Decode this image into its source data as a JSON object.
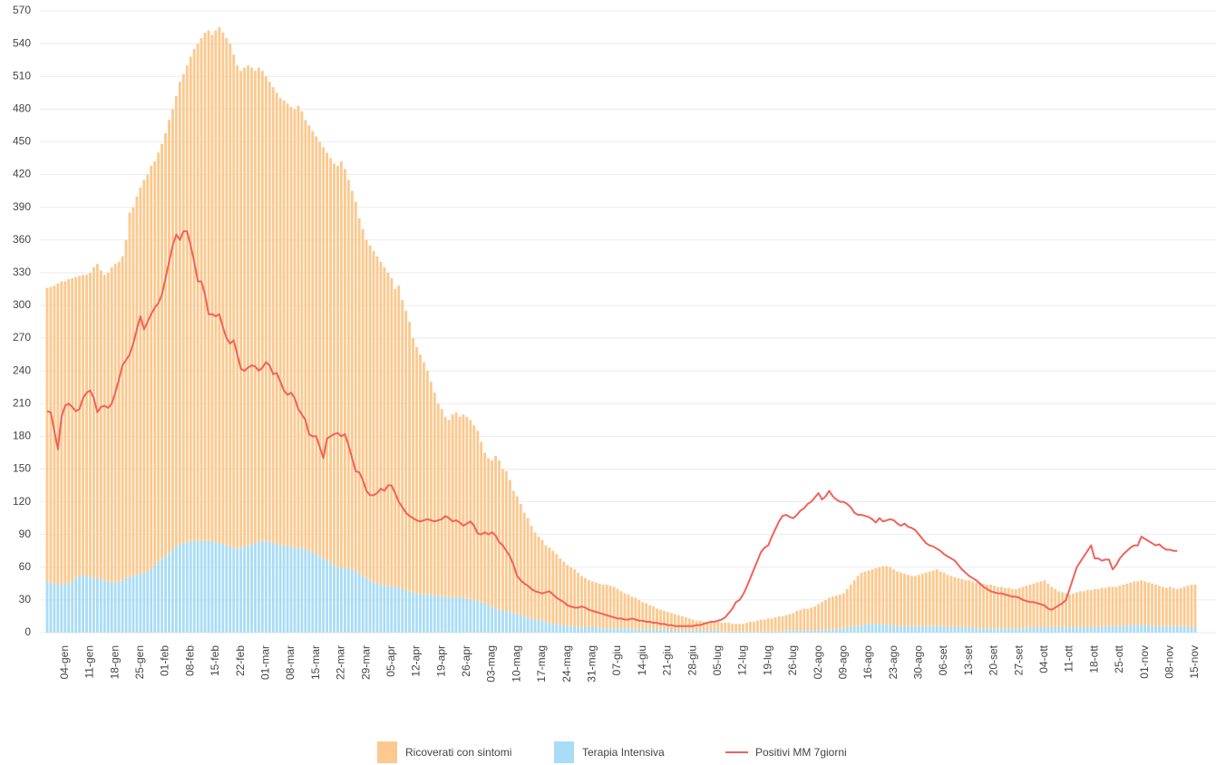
{
  "chart_data": {
    "type": "bar",
    "stacked": true,
    "grid": true,
    "ylim": [
      0,
      570
    ],
    "yticks": [
      0,
      30,
      60,
      90,
      120,
      150,
      180,
      210,
      240,
      270,
      300,
      330,
      360,
      390,
      420,
      450,
      480,
      510,
      540,
      570
    ],
    "categories": [
      null,
      null,
      null,
      null,
      null,
      "04-gen",
      null,
      null,
      null,
      null,
      null,
      null,
      "11-gen",
      null,
      null,
      null,
      null,
      null,
      null,
      "18-gen",
      null,
      null,
      null,
      null,
      null,
      null,
      "25-gen",
      null,
      null,
      null,
      null,
      null,
      null,
      "01-feb",
      null,
      null,
      null,
      null,
      null,
      null,
      "08-feb",
      null,
      null,
      null,
      null,
      null,
      null,
      "15-feb",
      null,
      null,
      null,
      null,
      null,
      null,
      "22-feb",
      null,
      null,
      null,
      null,
      null,
      null,
      "01-mar",
      null,
      null,
      null,
      null,
      null,
      null,
      "08-mar",
      null,
      null,
      null,
      null,
      null,
      null,
      "15-mar",
      null,
      null,
      null,
      null,
      null,
      null,
      "22-mar",
      null,
      null,
      null,
      null,
      null,
      null,
      "29-mar",
      null,
      null,
      null,
      null,
      null,
      null,
      "05-apr",
      null,
      null,
      null,
      null,
      null,
      null,
      "12-apr",
      null,
      null,
      null,
      null,
      null,
      null,
      "19-apr",
      null,
      null,
      null,
      null,
      null,
      null,
      "26-apr",
      null,
      null,
      null,
      null,
      null,
      null,
      "03-mag",
      null,
      null,
      null,
      null,
      null,
      null,
      "10-mag",
      null,
      null,
      null,
      null,
      null,
      null,
      "17-mag",
      null,
      null,
      null,
      null,
      null,
      null,
      "24-mag",
      null,
      null,
      null,
      null,
      null,
      null,
      "31-mag",
      null,
      null,
      null,
      null,
      null,
      null,
      "07-giu",
      null,
      null,
      null,
      null,
      null,
      null,
      "14-giu",
      null,
      null,
      null,
      null,
      null,
      null,
      "21-giu",
      null,
      null,
      null,
      null,
      null,
      null,
      "28-giu",
      null,
      null,
      null,
      null,
      null,
      null,
      "05-lug",
      null,
      null,
      null,
      null,
      null,
      null,
      "12-lug",
      null,
      null,
      null,
      null,
      null,
      null,
      "19-lug",
      null,
      null,
      null,
      null,
      null,
      null,
      "26-lug",
      null,
      null,
      null,
      null,
      null,
      null,
      "02-ago",
      null,
      null,
      null,
      null,
      null,
      null,
      "09-ago",
      null,
      null,
      null,
      null,
      null,
      null,
      "16-ago",
      null,
      null,
      null,
      null,
      null,
      null,
      "23-ago",
      null,
      null,
      null,
      null,
      null,
      null,
      "30-ago",
      null,
      null,
      null,
      null,
      null,
      null,
      "06-set",
      null,
      null,
      null,
      null,
      null,
      null,
      "13-set",
      null,
      null,
      null,
      null,
      null,
      null,
      "20-set",
      null,
      null,
      null,
      null,
      null,
      null,
      "27-set",
      null,
      null,
      null,
      null,
      null,
      null,
      "04-ott",
      null,
      null,
      null,
      null,
      null,
      null,
      "11-ott",
      null,
      null,
      null,
      null,
      null,
      null,
      "18-ott",
      null,
      null,
      null,
      null,
      null,
      null,
      "25-ott",
      null,
      null,
      null,
      null,
      null,
      null,
      "01-nov",
      null,
      null,
      null,
      null,
      null,
      null,
      "08-nov",
      null,
      null,
      null,
      null,
      null,
      null,
      "15-nov"
    ],
    "series": [
      {
        "name": "Ricoverati con sintomi",
        "color": "#fcc98f",
        "values": [
          269,
          271,
          273,
          276,
          277,
          278,
          279,
          278,
          276,
          275,
          275,
          276,
          279,
          285,
          288,
          283,
          280,
          283,
          289,
          292,
          293,
          297,
          310,
          334,
          338,
          347,
          354,
          360,
          364,
          370,
          370,
          375,
          380,
          388,
          397,
          404,
          413,
          424,
          430,
          437,
          444,
          451,
          456,
          461,
          466,
          468,
          464,
          469,
          473,
          469,
          465,
          461,
          452,
          443,
          437,
          439,
          440,
          437,
          433,
          435,
          431,
          426,
          422,
          418,
          414,
          410,
          408,
          406,
          403,
          402,
          406,
          400,
          394,
          390,
          386,
          383,
          380,
          377,
          374,
          371,
          368,
          368,
          373,
          366,
          355,
          347,
          339,
          326,
          318,
          310,
          307,
          304,
          300,
          296,
          292,
          287,
          283,
          273,
          277,
          265,
          256,
          247,
          233,
          226,
          220,
          213,
          205,
          195,
          186,
          176,
          172,
          165,
          162,
          168,
          170,
          165,
          168,
          167,
          165,
          160,
          156,
          147,
          138,
          135,
          134,
          140,
          137,
          130,
          128,
          121,
          112,
          108,
          102,
          95,
          91,
          85,
          80,
          76,
          74,
          70,
          69,
          67,
          64,
          61,
          58,
          56,
          54,
          52,
          50,
          47,
          45,
          43,
          42,
          41,
          41,
          40,
          40,
          39,
          38,
          36,
          34,
          32,
          31,
          30,
          29,
          27,
          25,
          24,
          22,
          21,
          19,
          18,
          17,
          16,
          16,
          15,
          14,
          13,
          12,
          11,
          10,
          9,
          9,
          8,
          8,
          8,
          8,
          8,
          8,
          8,
          8,
          7,
          7,
          7,
          7,
          8,
          9,
          9,
          10,
          11,
          11,
          12,
          12,
          13,
          14,
          14,
          14,
          15,
          16,
          18,
          19,
          20,
          20,
          21,
          22,
          24,
          26,
          27,
          29,
          30,
          31,
          31,
          32,
          35,
          39,
          42,
          46,
          48,
          49,
          49,
          50,
          51,
          52,
          53,
          54,
          53,
          51,
          50,
          49,
          48,
          47,
          46,
          46,
          47,
          48,
          49,
          50,
          51,
          52,
          50,
          49,
          48,
          47,
          46,
          45,
          44,
          43,
          43,
          42,
          42,
          42,
          41,
          40,
          40,
          39,
          38,
          38,
          37,
          37,
          36,
          36,
          37,
          38,
          39,
          39,
          40,
          41,
          42,
          43,
          40,
          37,
          35,
          33,
          32,
          31,
          30,
          31,
          32,
          33,
          33,
          34,
          34,
          35,
          35,
          35,
          35,
          36,
          36,
          36,
          37,
          38,
          38,
          39,
          40,
          40,
          41,
          40,
          39,
          39,
          38,
          37,
          36,
          35,
          36,
          35,
          34,
          35,
          36,
          38,
          39,
          39
        ]
      },
      {
        "name": "Terapia Intensiva",
        "color": "#a9dcf6",
        "values": [
          47,
          46,
          45,
          44,
          45,
          44,
          45,
          47,
          50,
          52,
          53,
          52,
          51,
          50,
          50,
          49,
          48,
          47,
          46,
          46,
          47,
          48,
          50,
          51,
          52,
          53,
          54,
          55,
          56,
          58,
          62,
          65,
          68,
          70,
          73,
          76,
          79,
          81,
          82,
          83,
          84,
          84,
          84,
          84,
          84,
          84,
          84,
          83,
          82,
          81,
          80,
          79,
          78,
          77,
          78,
          79,
          80,
          81,
          82,
          83,
          84,
          84,
          83,
          82,
          81,
          80,
          80,
          79,
          79,
          78,
          77,
          78,
          76,
          75,
          74,
          72,
          70,
          68,
          66,
          64,
          62,
          60,
          59,
          59,
          60,
          58,
          56,
          54,
          52,
          50,
          48,
          46,
          45,
          44,
          43,
          43,
          42,
          42,
          41,
          40,
          39,
          38,
          37,
          36,
          35,
          35,
          35,
          35,
          34,
          34,
          33,
          33,
          33,
          32,
          32,
          33,
          32,
          31,
          30,
          30,
          29,
          28,
          27,
          25,
          24,
          22,
          21,
          20,
          20,
          19,
          18,
          17,
          16,
          15,
          14,
          13,
          12,
          12,
          11,
          10,
          9,
          8,
          8,
          7,
          7,
          6,
          6,
          6,
          5,
          5,
          5,
          5,
          5,
          5,
          4,
          4,
          4,
          4,
          4,
          4,
          4,
          4,
          4,
          3,
          3,
          3,
          3,
          3,
          3,
          3,
          3,
          3,
          3,
          3,
          2,
          2,
          2,
          2,
          2,
          2,
          2,
          2,
          2,
          2,
          2,
          2,
          2,
          2,
          1,
          1,
          1,
          1,
          1,
          1,
          1,
          1,
          1,
          1,
          1,
          1,
          1,
          1,
          1,
          1,
          1,
          1,
          2,
          2,
          2,
          2,
          2,
          2,
          2,
          2,
          2,
          2,
          2,
          3,
          3,
          3,
          3,
          4,
          4,
          5,
          5,
          6,
          6,
          7,
          7,
          8,
          8,
          8,
          8,
          8,
          7,
          7,
          7,
          6,
          6,
          6,
          6,
          6,
          6,
          6,
          6,
          6,
          6,
          6,
          6,
          6,
          6,
          5,
          5,
          5,
          5,
          5,
          5,
          5,
          5,
          4,
          4,
          4,
          4,
          4,
          4,
          4,
          4,
          4,
          4,
          4,
          4,
          4,
          4,
          4,
          5,
          5,
          5,
          5,
          5,
          5,
          5,
          5,
          5,
          5,
          5,
          5,
          5,
          5,
          5,
          5,
          5,
          5,
          5,
          5,
          6,
          6,
          6,
          6,
          6,
          6,
          6,
          7,
          7,
          7,
          7,
          7,
          7,
          7,
          6,
          6,
          6,
          6,
          6,
          6,
          6,
          6,
          6,
          6,
          5,
          5,
          5
        ]
      },
      {
        "name": "Positivi MM 7giorni",
        "type": "line",
        "color": "#f0625b",
        "values": [
          203,
          202,
          185,
          168,
          198,
          208,
          210,
          207,
          203,
          205,
          215,
          220,
          222,
          215,
          202,
          207,
          208,
          206,
          210,
          220,
          232,
          245,
          250,
          255,
          265,
          278,
          290,
          278,
          285,
          292,
          298,
          302,
          310,
          325,
          340,
          355,
          365,
          360,
          368,
          368,
          355,
          340,
          322,
          322,
          310,
          292,
          292,
          290,
          292,
          280,
          270,
          265,
          268,
          255,
          242,
          240,
          243,
          245,
          244,
          240,
          243,
          248,
          245,
          237,
          238,
          230,
          222,
          218,
          220,
          215,
          205,
          200,
          195,
          182,
          180,
          180,
          170,
          160,
          178,
          180,
          182,
          183,
          180,
          182,
          172,
          160,
          148,
          147,
          140,
          130,
          126,
          126,
          128,
          132,
          130,
          135,
          135,
          128,
          120,
          115,
          110,
          107,
          105,
          103,
          102,
          103,
          104,
          103,
          102,
          103,
          104,
          107,
          105,
          102,
          103,
          101,
          98,
          100,
          102,
          98,
          91,
          90,
          92,
          90,
          92,
          89,
          83,
          80,
          75,
          70,
          62,
          52,
          48,
          45,
          43,
          40,
          38,
          37,
          36,
          37,
          38,
          35,
          32,
          30,
          28,
          25,
          24,
          23,
          23,
          24,
          23,
          21,
          20,
          19,
          18,
          17,
          16,
          15,
          14,
          13,
          13,
          12,
          12,
          13,
          12,
          11,
          11,
          10,
          10,
          9,
          9,
          8,
          8,
          7,
          7,
          6,
          6,
          6,
          6,
          6,
          6,
          7,
          7,
          8,
          9,
          10,
          10,
          11,
          12,
          14,
          18,
          22,
          28,
          30,
          35,
          42,
          50,
          58,
          66,
          74,
          78,
          80,
          88,
          95,
          102,
          107,
          108,
          106,
          105,
          108,
          112,
          114,
          118,
          120,
          124,
          128,
          122,
          125,
          130,
          125,
          122,
          120,
          120,
          118,
          115,
          110,
          108,
          108,
          107,
          106,
          104,
          101,
          105,
          102,
          103,
          104,
          103,
          100,
          98,
          100,
          97,
          96,
          94,
          90,
          86,
          82,
          80,
          79,
          77,
          75,
          72,
          70,
          68,
          66,
          62,
          58,
          55,
          52,
          50,
          48,
          45,
          42,
          40,
          38,
          37,
          36,
          36,
          35,
          34,
          33,
          33,
          32,
          30,
          29,
          28,
          28,
          27,
          26,
          25,
          22,
          21,
          23,
          25,
          27,
          30,
          40,
          50,
          60,
          65,
          70,
          75,
          80,
          68,
          68,
          66,
          67,
          67,
          58,
          62,
          68,
          72,
          75,
          78,
          80,
          80,
          88,
          86,
          84,
          82,
          80,
          81,
          78,
          76,
          76,
          75,
          75,
          null,
          null,
          null,
          null,
          null
        ]
      }
    ]
  }
}
